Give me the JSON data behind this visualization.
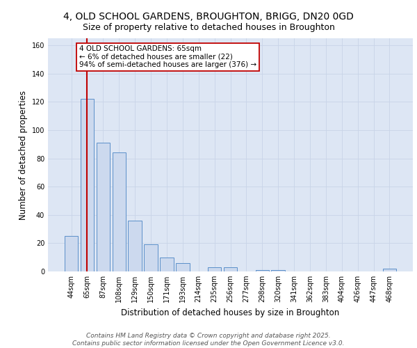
{
  "title_line1": "4, OLD SCHOOL GARDENS, BROUGHTON, BRIGG, DN20 0GD",
  "title_line2": "Size of property relative to detached houses in Broughton",
  "xlabel": "Distribution of detached houses by size in Broughton",
  "ylabel": "Number of detached properties",
  "categories": [
    "44sqm",
    "65sqm",
    "87sqm",
    "108sqm",
    "129sqm",
    "150sqm",
    "171sqm",
    "193sqm",
    "214sqm",
    "235sqm",
    "256sqm",
    "277sqm",
    "298sqm",
    "320sqm",
    "341sqm",
    "362sqm",
    "383sqm",
    "404sqm",
    "426sqm",
    "447sqm",
    "468sqm"
  ],
  "values": [
    25,
    122,
    91,
    84,
    36,
    19,
    10,
    6,
    0,
    3,
    3,
    0,
    1,
    1,
    0,
    0,
    0,
    0,
    0,
    0,
    2
  ],
  "bar_color": "#ccd9ee",
  "bar_edge_color": "#5b8fc9",
  "vline_x": 1,
  "vline_color": "#c00000",
  "annotation_text": "4 OLD SCHOOL GARDENS: 65sqm\n← 6% of detached houses are smaller (22)\n94% of semi-detached houses are larger (376) →",
  "annotation_box_color": "#ffffff",
  "annotation_box_edge": "#c00000",
  "ylim": [
    0,
    165
  ],
  "yticks": [
    0,
    20,
    40,
    60,
    80,
    100,
    120,
    140,
    160
  ],
  "grid_color": "#c8d4e8",
  "background_color": "#dde6f4",
  "footer_text": "Contains HM Land Registry data © Crown copyright and database right 2025.\nContains public sector information licensed under the Open Government Licence v3.0.",
  "title_fontsize": 10,
  "subtitle_fontsize": 9,
  "label_fontsize": 8.5,
  "tick_fontsize": 7,
  "annot_fontsize": 7.5,
  "footer_fontsize": 6.5
}
